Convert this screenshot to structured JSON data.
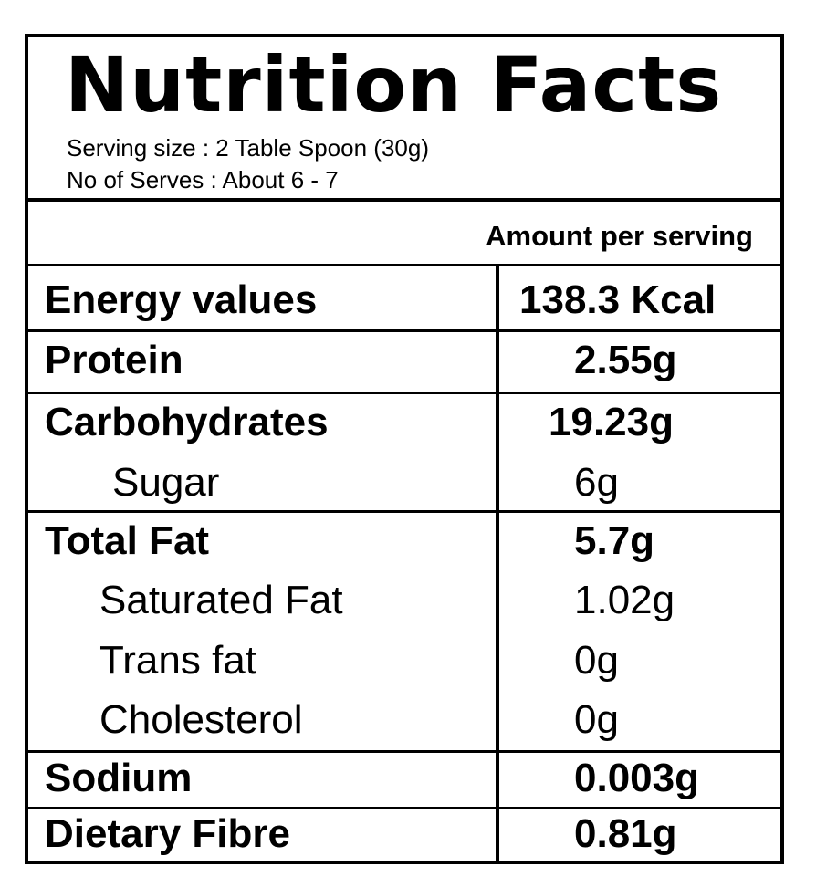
{
  "title": "Nutrition Facts",
  "serving_size": "Serving size : 2 Table Spoon (30g)",
  "servings": "No of Serves : About 6 - 7",
  "amount_header": "Amount per serving",
  "nutrients": [
    {
      "name": "Energy values",
      "value": "138.3 Kcal"
    },
    {
      "name": "Protein",
      "value": "2.55g"
    },
    {
      "name": "Carbohydrates",
      "value": "19.23g"
    },
    {
      "name": "Sugar",
      "value": "6g"
    },
    {
      "name": "Total Fat",
      "value": "5.7g"
    },
    {
      "name": "Saturated Fat",
      "value": "1.02g"
    },
    {
      "name": "Trans fat",
      "value": "0g"
    },
    {
      "name": "Cholesterol",
      "value": "0g"
    },
    {
      "name": "Sodium",
      "value": "0.003g"
    },
    {
      "name": "Dietary Fibre",
      "value": "0.81g"
    }
  ]
}
